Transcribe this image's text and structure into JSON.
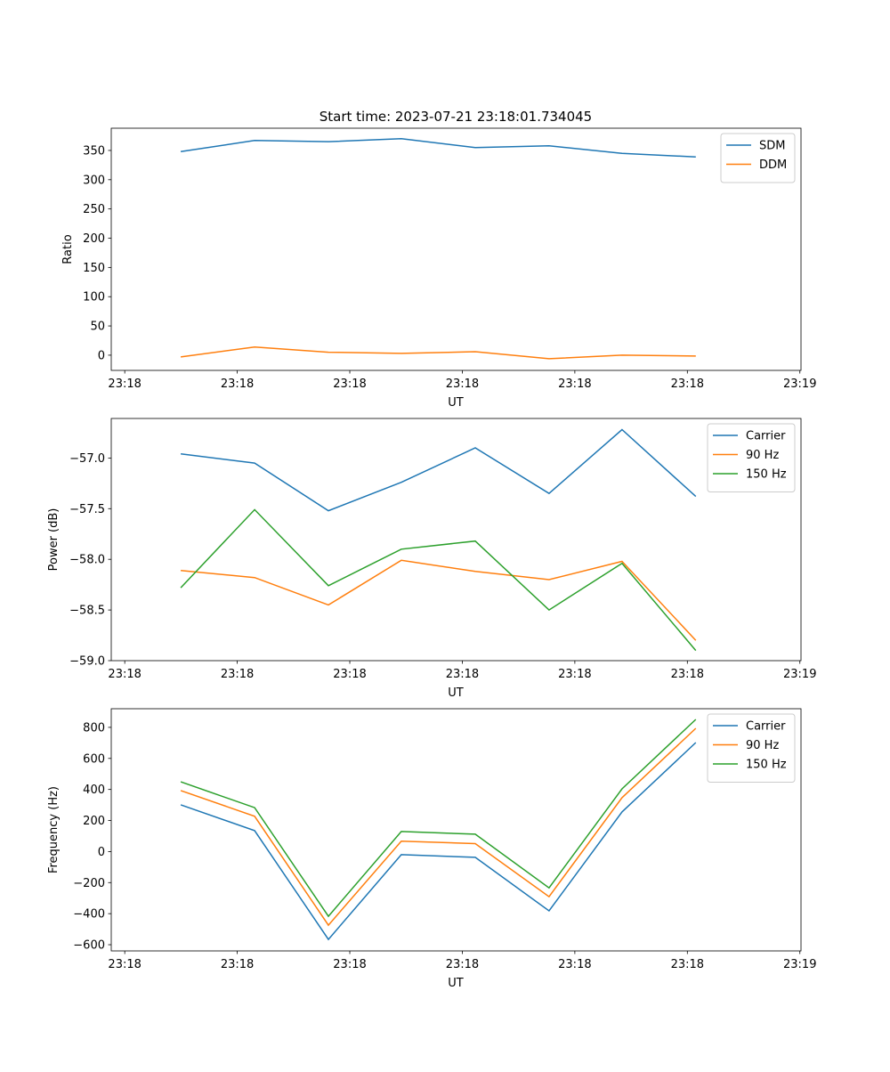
{
  "title": "Start time: 2023-07-21 23:18:01.734045",
  "colors": {
    "blue": "#1f77b4",
    "orange": "#ff7f0e",
    "green": "#2ca02c"
  },
  "chart_data": [
    {
      "type": "line",
      "xlabel": "UT",
      "ylabel": "Ratio",
      "xticks": [
        0,
        1,
        2,
        3,
        4,
        5,
        6
      ],
      "xtick_labels": [
        "23:18",
        "23:18",
        "23:18",
        "23:18",
        "23:18",
        "23:18",
        "23:19"
      ],
      "xlim": [
        -0.12,
        6.01
      ],
      "ylim": [
        -26,
        388
      ],
      "yticks": [
        0,
        50,
        100,
        150,
        200,
        250,
        300,
        350
      ],
      "ytick_labels": [
        "0",
        "50",
        "100",
        "150",
        "200",
        "250",
        "300",
        "350"
      ],
      "x": [
        0.498,
        1.154,
        1.81,
        2.458,
        3.115,
        3.771,
        4.419,
        5.075
      ],
      "legend": "top-right",
      "series": [
        {
          "name": "SDM",
          "color": "#1f77b4",
          "values": [
            348,
            367,
            365,
            370,
            355,
            358,
            345,
            339
          ]
        },
        {
          "name": "DDM",
          "color": "#ff7f0e",
          "values": [
            -3,
            14,
            5,
            3,
            6,
            -6,
            0,
            -1.5
          ]
        }
      ]
    },
    {
      "type": "line",
      "xlabel": "UT",
      "ylabel": "Power (dB)",
      "xticks": [
        0,
        1,
        2,
        3,
        4,
        5,
        6
      ],
      "xtick_labels": [
        "23:18",
        "23:18",
        "23:18",
        "23:18",
        "23:18",
        "23:18",
        "23:19"
      ],
      "xlim": [
        -0.12,
        6.01
      ],
      "ylim": [
        -59.0,
        -56.61
      ],
      "yticks": [
        -59,
        -58.5,
        -58,
        -57.5,
        -57
      ],
      "ytick_labels": [
        "−59.0",
        "−58.5",
        "−58.0",
        "−57.5",
        "−57.0"
      ],
      "x": [
        0.498,
        1.154,
        1.81,
        2.458,
        3.115,
        3.771,
        4.419,
        5.075
      ],
      "legend": "top-right",
      "series": [
        {
          "name": "Carrier",
          "color": "#1f77b4",
          "values": [
            -56.96,
            -57.05,
            -57.52,
            -57.24,
            -56.9,
            -57.35,
            -56.72,
            -57.38
          ]
        },
        {
          "name": "90 Hz",
          "color": "#ff7f0e",
          "values": [
            -58.11,
            -58.18,
            -58.45,
            -58.01,
            -58.12,
            -58.2,
            -58.02,
            -58.8
          ]
        },
        {
          "name": "150 Hz",
          "color": "#2ca02c",
          "values": [
            -58.28,
            -57.51,
            -58.26,
            -57.9,
            -57.82,
            -58.5,
            -58.04,
            -58.9
          ]
        }
      ]
    },
    {
      "type": "line",
      "xlabel": "UT",
      "ylabel": "Frequency (Hz)",
      "xticks": [
        0,
        1,
        2,
        3,
        4,
        5,
        6
      ],
      "xtick_labels": [
        "23:18",
        "23:18",
        "23:18",
        "23:18",
        "23:18",
        "23:18",
        "23:19"
      ],
      "xlim": [
        -0.12,
        6.01
      ],
      "ylim": [
        -640,
        920
      ],
      "yticks": [
        -600,
        -400,
        -200,
        0,
        200,
        400,
        600,
        800
      ],
      "ytick_labels": [
        "−600",
        "−400",
        "−200",
        "0",
        "200",
        "400",
        "600",
        "800"
      ],
      "x": [
        0.498,
        1.154,
        1.81,
        2.458,
        3.115,
        3.771,
        4.419,
        5.075
      ],
      "legend": "top-right",
      "series": [
        {
          "name": "Carrier",
          "color": "#1f77b4",
          "values": [
            301,
            135,
            -566,
            -20,
            -37,
            -382,
            255,
            702
          ]
        },
        {
          "name": "90 Hz",
          "color": "#ff7f0e",
          "values": [
            393,
            227,
            -474,
            67,
            51,
            -291,
            347,
            794
          ]
        },
        {
          "name": "150 Hz",
          "color": "#2ca02c",
          "values": [
            449,
            283,
            -417,
            129,
            112,
            -234,
            404,
            851
          ]
        }
      ]
    }
  ]
}
